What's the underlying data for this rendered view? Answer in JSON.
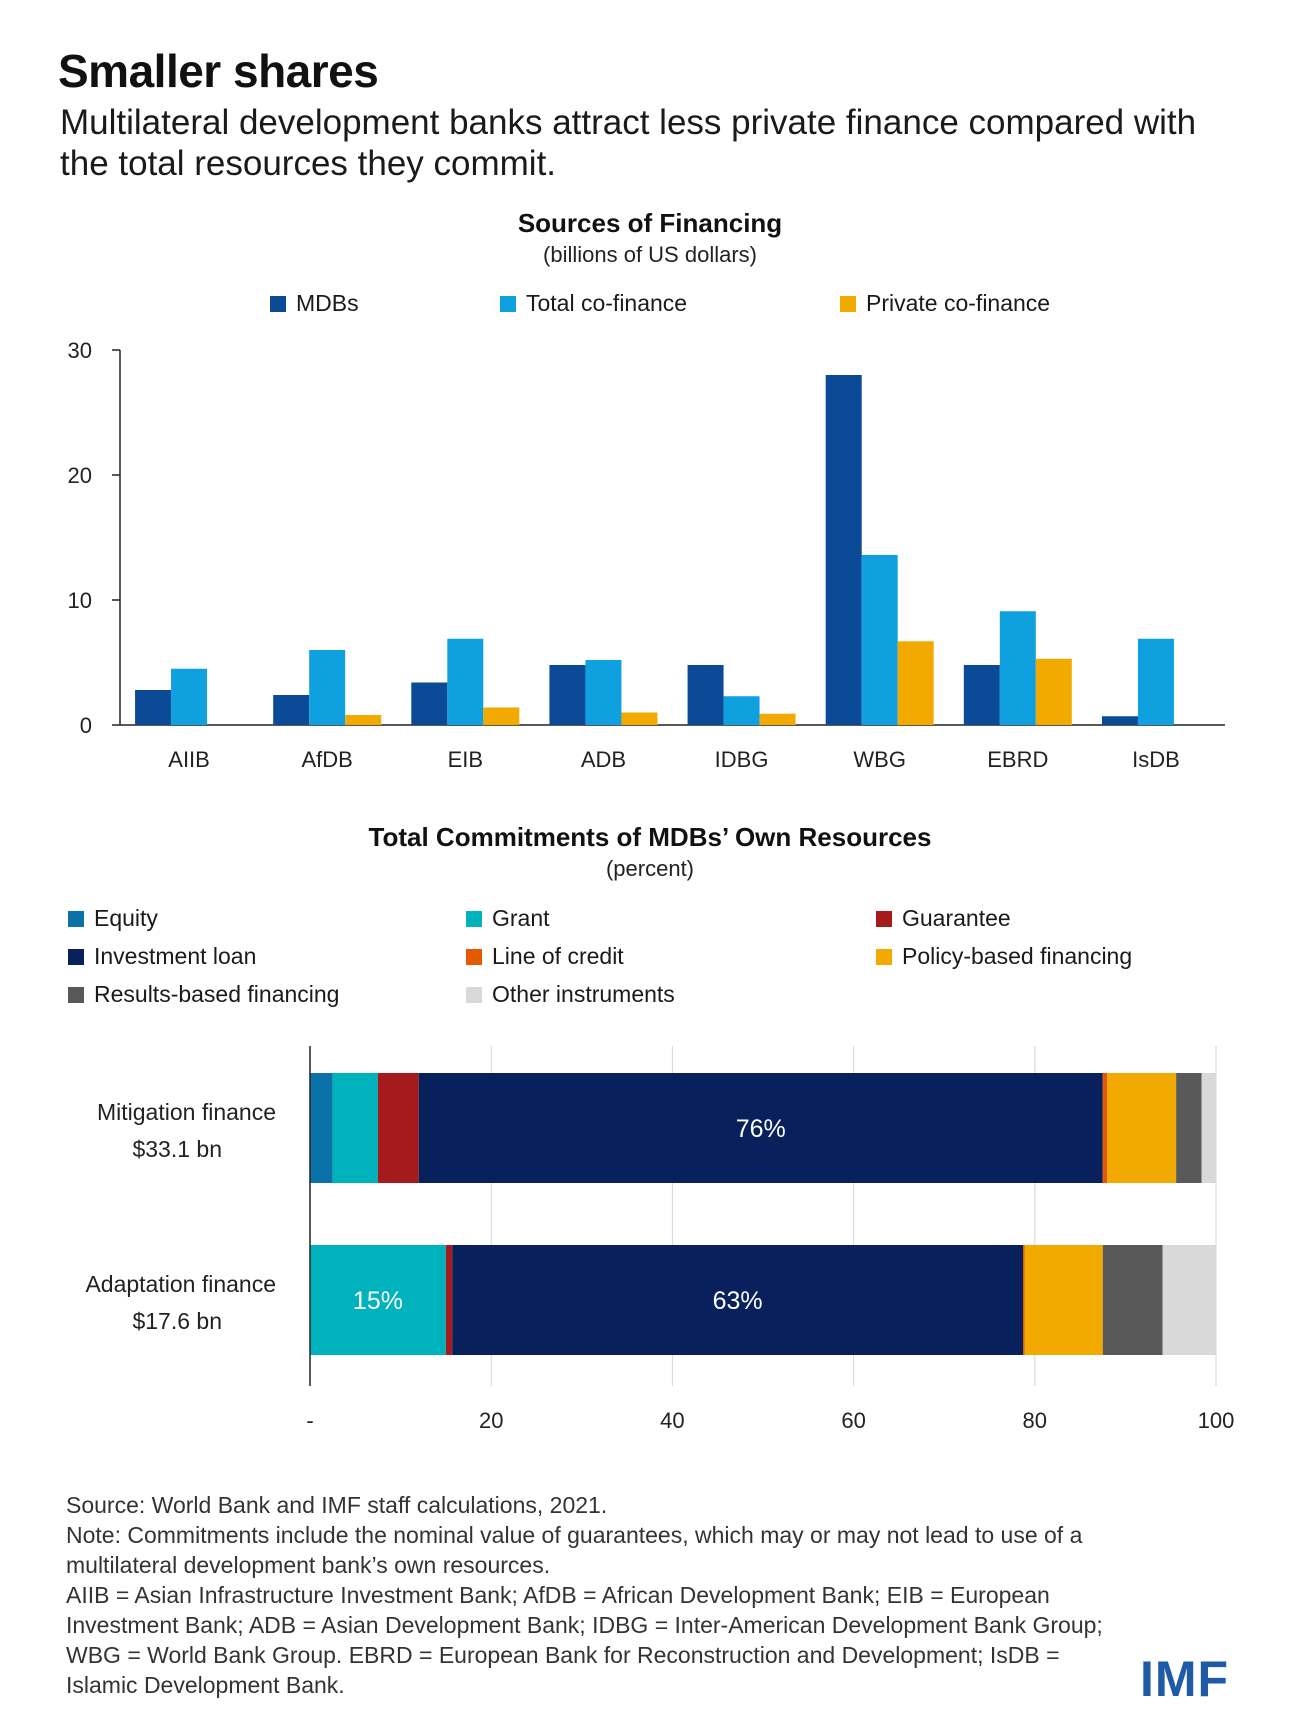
{
  "headline": "Smaller shares",
  "subhead": "Multilateral development banks attract less private finance compared with the total resources they commit.",
  "chart_data": [
    {
      "type": "bar",
      "title": "Sources of Financing",
      "subtitle": "(billions of US dollars)",
      "categories": [
        "AIIB",
        "AfDB",
        "EIB",
        "ADB",
        "IDBG",
        "WBG",
        "EBRD",
        "IsDB"
      ],
      "series": [
        {
          "name": "MDBs",
          "color": "#0a4a97",
          "values": [
            2.8,
            2.4,
            3.4,
            4.8,
            4.8,
            28.0,
            4.8,
            0.7
          ]
        },
        {
          "name": "Total co-finance",
          "color": "#0ea0df",
          "values": [
            4.5,
            6.0,
            6.9,
            5.2,
            2.3,
            13.6,
            9.1,
            6.9
          ]
        },
        {
          "name": "Private co-finance",
          "color": "#f2aa00",
          "values": [
            0,
            0.8,
            1.4,
            1.0,
            0.9,
            6.7,
            5.3,
            0
          ]
        }
      ],
      "ylim": [
        0,
        30
      ],
      "yticks": [
        "0",
        "10",
        "20",
        "30"
      ],
      "legend_position": "top"
    },
    {
      "type": "bar",
      "orientation": "horizontal",
      "stacked": true,
      "title": "Total Commitments of MDBs’ Own Resources",
      "subtitle": "(percent)",
      "categories": [
        {
          "label": "Mitigation finance",
          "sublabel": "$33.1 bn"
        },
        {
          "label": "Adaptation finance",
          "sublabel": "$17.6 bn"
        }
      ],
      "series": [
        {
          "name": "Equity",
          "color": "#0a72a8",
          "values": [
            2.5,
            0
          ]
        },
        {
          "name": "Grant",
          "color": "#00b2bb",
          "values": [
            5.0,
            15.0
          ]
        },
        {
          "name": "Guarantee",
          "color": "#a6191c",
          "values": [
            4.5,
            0.7
          ]
        },
        {
          "name": "Investment loan",
          "color": "#08205c",
          "values": [
            75.5,
            63.0
          ]
        },
        {
          "name": "Line of credit",
          "color": "#e35a00",
          "values": [
            0.5,
            0.2
          ]
        },
        {
          "name": "Policy-based financing",
          "color": "#f2aa00",
          "values": [
            7.6,
            8.6
          ]
        },
        {
          "name": "Results-based financing",
          "color": "#595959",
          "values": [
            2.8,
            6.6
          ]
        },
        {
          "name": "Other instruments",
          "color": "#d9d9d9",
          "values": [
            1.6,
            5.9
          ]
        }
      ],
      "data_labels": [
        {
          "row": 0,
          "series": "Investment loan",
          "text": "76%"
        },
        {
          "row": 1,
          "series": "Grant",
          "text": "15%"
        },
        {
          "row": 1,
          "series": "Investment loan",
          "text": "63%"
        }
      ],
      "xlim": [
        0,
        100
      ],
      "xticks": [
        "-",
        "20",
        "40",
        "60",
        "80",
        "100"
      ],
      "grid": true,
      "legend_position": "top"
    }
  ],
  "footnotes": [
    "Source: World Bank and IMF staff calculations, 2021.",
    "Note: Commitments include the nominal value of guarantees, which may or may not lead to use of a multilateral development bank’s own resources.",
    "AIIB = Asian Infrastructure Investment Bank; AfDB = African Development Bank; EIB = European Investment Bank; ADB = Asian Development Bank; IDBG = Inter-American Development Bank Group; WBG = World Bank Group. EBRD = European Bank for Reconstruction and Development; IsDB = Islamic Development Bank."
  ],
  "logo_text": "IMF"
}
